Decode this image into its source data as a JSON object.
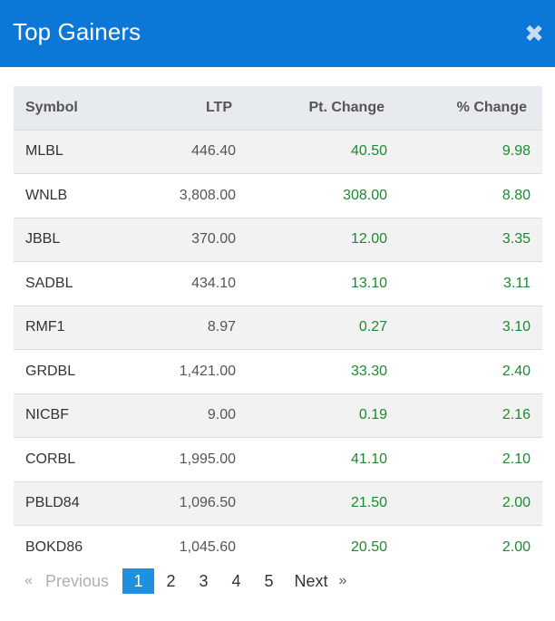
{
  "dialog": {
    "title": "Top Gainers",
    "close_icon": "close-icon"
  },
  "table": {
    "headers": [
      "Symbol",
      "LTP",
      "Pt. Change",
      "% Change"
    ],
    "rows": [
      {
        "symbol": "MLBL",
        "ltp": "446.40",
        "pt_change": "40.50",
        "pct_change": "9.98"
      },
      {
        "symbol": "WNLB",
        "ltp": "3,808.00",
        "pt_change": "308.00",
        "pct_change": "8.80"
      },
      {
        "symbol": "JBBL",
        "ltp": "370.00",
        "pt_change": "12.00",
        "pct_change": "3.35"
      },
      {
        "symbol": "SADBL",
        "ltp": "434.10",
        "pt_change": "13.10",
        "pct_change": "3.11"
      },
      {
        "symbol": "RMF1",
        "ltp": "8.97",
        "pt_change": "0.27",
        "pct_change": "3.10"
      },
      {
        "symbol": "GRDBL",
        "ltp": "1,421.00",
        "pt_change": "33.30",
        "pct_change": "2.40"
      },
      {
        "symbol": "NICBF",
        "ltp": "9.00",
        "pt_change": "0.19",
        "pct_change": "2.16"
      },
      {
        "symbol": "CORBL",
        "ltp": "1,995.00",
        "pt_change": "41.10",
        "pct_change": "2.10"
      },
      {
        "symbol": "PBLD84",
        "ltp": "1,096.50",
        "pt_change": "21.50",
        "pct_change": "2.00"
      },
      {
        "symbol": "BOKD86",
        "ltp": "1,045.60",
        "pt_change": "20.50",
        "pct_change": "2.00"
      }
    ]
  },
  "pagination": {
    "prev_arrow": "«",
    "prev_label": "Previous",
    "pages": [
      "1",
      "2",
      "3",
      "4",
      "5"
    ],
    "current_page": "1",
    "next_label": "Next",
    "next_arrow": "»"
  },
  "colors": {
    "header_bg": "#0b77d6",
    "positive": "#1a8b2e",
    "active_page": "#1e90e0",
    "table_head_bg": "#e7ebef"
  }
}
